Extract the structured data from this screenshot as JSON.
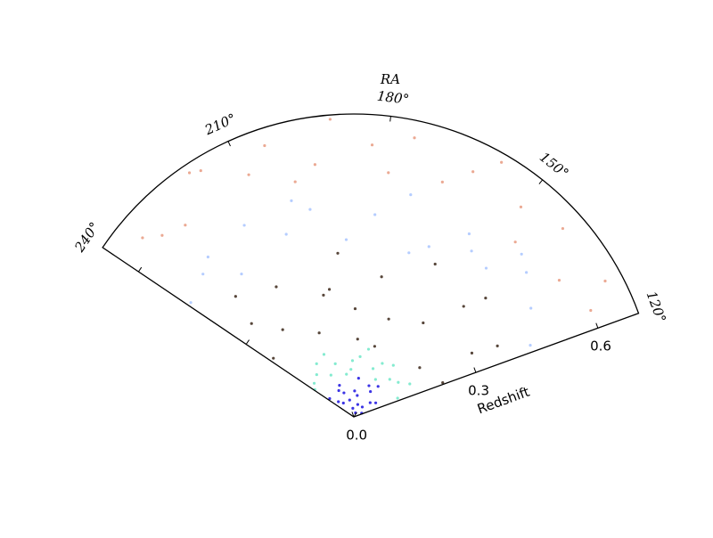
{
  "chart_data": {
    "type": "polar-wedge-scatter",
    "xlabel": "RA",
    "ylabel": "Redshift",
    "xlim": [
      120,
      240
    ],
    "ylim": [
      0,
      0.7
    ],
    "xticks": [
      {
        "value": 120,
        "label": "120°"
      },
      {
        "value": 150,
        "label": "150°"
      },
      {
        "value": 180,
        "label": "180°"
      },
      {
        "value": 210,
        "label": "210°"
      },
      {
        "value": 240,
        "label": "240°"
      }
    ],
    "yticks": [
      {
        "value": 0,
        "label": "0.0"
      },
      0.3,
      0.6
    ],
    "series": [
      {
        "color": "#1a10e0",
        "x": [
          125,
          140,
          155,
          170,
          185,
          200,
          215,
          230,
          132,
          148,
          162,
          178,
          193,
          208,
          222,
          237,
          150,
          180,
          210,
          165
        ],
        "values": [
          0.02,
          0.05,
          0.07,
          0.03,
          0.06,
          0.04,
          0.07,
          0.05,
          0.06,
          0.03,
          0.08,
          0.05,
          0.02,
          0.06,
          0.04,
          0.07,
          0.09,
          0.09,
          0.08,
          0.01
        ]
      },
      {
        "color": "#6ee8c8",
        "x": [
          123,
          137,
          151,
          166,
          181,
          196,
          211,
          226,
          239,
          130,
          145,
          160,
          175,
          190,
          205,
          220,
          234,
          158,
          188,
          214
        ],
        "values": [
          0.11,
          0.13,
          0.15,
          0.12,
          0.14,
          0.1,
          0.16,
          0.13,
          0.11,
          0.15,
          0.12,
          0.14,
          0.16,
          0.11,
          0.13,
          0.15,
          0.12,
          0.1,
          0.13,
          0.11
        ]
      },
      {
        "color": "#3a2618",
        "x": [
          121,
          128,
          136,
          144,
          152,
          160,
          168,
          176,
          184,
          192,
          200,
          208,
          216,
          224,
          232,
          238,
          141,
          171,
          197,
          229,
          126,
          186
        ],
        "values": [
          0.22,
          0.31,
          0.19,
          0.36,
          0.27,
          0.4,
          0.24,
          0.33,
          0.18,
          0.38,
          0.29,
          0.21,
          0.35,
          0.26,
          0.32,
          0.23,
          0.41,
          0.17,
          0.3,
          0.39,
          0.37,
          0.25
        ]
      },
      {
        "color": "#a8c4ff",
        "x": [
          122,
          131,
          139,
          147,
          156,
          164,
          173,
          181,
          189,
          198,
          206,
          215,
          223,
          231,
          239,
          143,
          169,
          202,
          227,
          153
        ],
        "values": [
          0.44,
          0.48,
          0.52,
          0.46,
          0.5,
          0.43,
          0.53,
          0.47,
          0.41,
          0.49,
          0.45,
          0.51,
          0.42,
          0.48,
          0.46,
          0.54,
          0.4,
          0.52,
          0.5,
          0.47
        ]
      },
      {
        "color": "#e89a80",
        "x": [
          124,
          133,
          141,
          150,
          158,
          167,
          175,
          183,
          191,
          200,
          209,
          217,
          226,
          234,
          128,
          146,
          179,
          204,
          231,
          162,
          195,
          219
        ],
        "values": [
          0.6,
          0.57,
          0.65,
          0.62,
          0.68,
          0.58,
          0.66,
          0.63,
          0.69,
          0.56,
          0.61,
          0.67,
          0.59,
          0.64,
          0.66,
          0.55,
          0.57,
          0.66,
          0.61,
          0.63,
          0.59,
          0.68
        ]
      }
    ]
  }
}
